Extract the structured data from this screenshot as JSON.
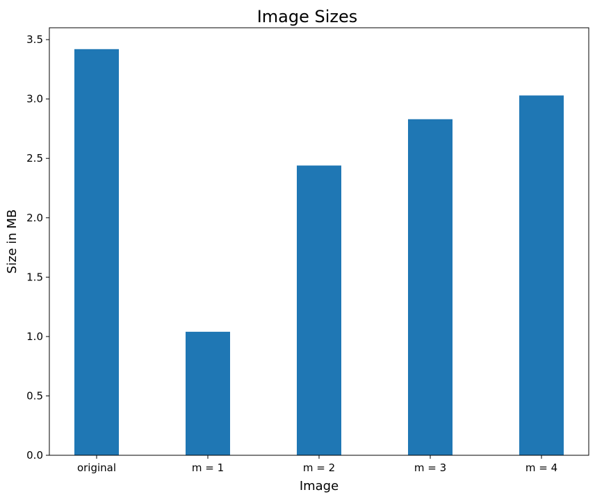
{
  "chart_data": {
    "type": "bar",
    "title": "Image Sizes",
    "xlabel": "Image",
    "ylabel": "Size in MB",
    "categories": [
      "original",
      "m = 1",
      "m = 2",
      "m = 3",
      "m = 4"
    ],
    "values": [
      3.42,
      1.04,
      2.44,
      2.83,
      3.03
    ],
    "ylim": [
      0,
      3.6
    ],
    "yticks": [
      "0.0",
      "0.5",
      "1.0",
      "1.5",
      "2.0",
      "2.5",
      "3.0",
      "3.5"
    ],
    "bar_color": "#1f77b4",
    "grid": false,
    "legend": "none"
  }
}
